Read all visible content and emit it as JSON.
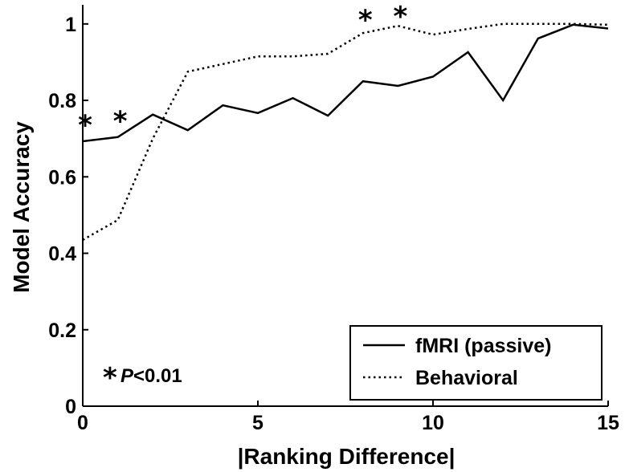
{
  "chart_data": {
    "type": "line",
    "xlabel": "|Ranking Difference|",
    "ylabel": "Model Accuracy",
    "xlim": [
      0,
      15
    ],
    "ylim": [
      0,
      1.05
    ],
    "xticks": [
      "0",
      "5",
      "10",
      "15"
    ],
    "yticks": [
      "0",
      "0.2",
      "0.4",
      "0.6",
      "0.8",
      "1"
    ],
    "x": [
      0,
      1,
      2,
      3,
      4,
      5,
      6,
      7,
      8,
      9,
      10,
      11,
      12,
      13,
      14,
      15
    ],
    "series": [
      {
        "name": "fMRI (passive)",
        "style": "solid",
        "color": "#000000",
        "values": [
          0.693,
          0.704,
          0.763,
          0.722,
          0.787,
          0.767,
          0.806,
          0.76,
          0.85,
          0.838,
          0.862,
          0.926,
          0.8,
          0.962,
          0.998,
          0.988
        ]
      },
      {
        "name": "Behavioral",
        "style": "dotted",
        "color": "#000000",
        "values": [
          0.435,
          0.487,
          0.7,
          0.875,
          0.895,
          0.915,
          0.915,
          0.922,
          0.976,
          0.995,
          0.972,
          0.987,
          1.0,
          1.0,
          1.0,
          0.998
        ]
      }
    ],
    "significance_markers": [
      {
        "x": 0,
        "y": 0.755,
        "label": "*"
      },
      {
        "x": 1,
        "y": 0.765,
        "label": "*"
      },
      {
        "x": 8,
        "y": 1.03,
        "label": "*"
      },
      {
        "x": 9,
        "y": 1.04,
        "label": "*"
      }
    ],
    "annotation": {
      "star": "*",
      "p_label": "P",
      "p_value": "<0.01"
    },
    "legend_position": "bottom-right",
    "grid": false
  }
}
